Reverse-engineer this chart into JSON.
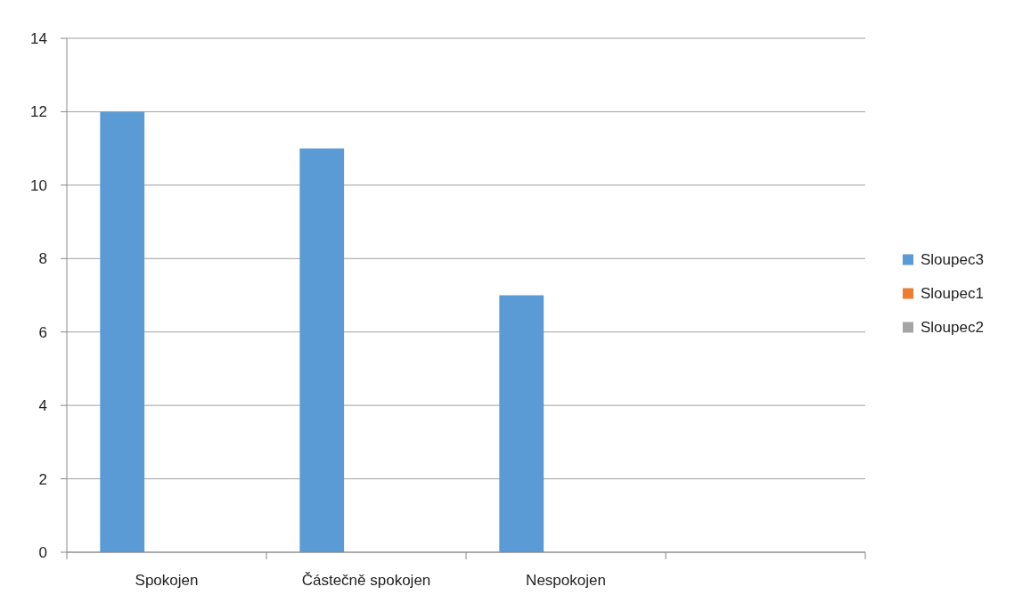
{
  "chart_data": {
    "type": "bar",
    "categories": [
      "Spokojen",
      "Částečně spokojen",
      "Nespokojen",
      null
    ],
    "series": [
      {
        "name": "Sloupec3",
        "color": "#5b9bd5",
        "values": [
          12,
          11,
          7,
          null
        ]
      },
      {
        "name": "Sloupec1",
        "color": "#ed7d31",
        "values": [
          null,
          null,
          null,
          null
        ]
      },
      {
        "name": "Sloupec2",
        "color": "#a5a5a5",
        "values": [
          null,
          null,
          null,
          null
        ]
      }
    ],
    "ylim": [
      0,
      14
    ],
    "yticks": [
      0,
      2,
      4,
      6,
      8,
      10,
      12,
      14
    ],
    "grid": "y",
    "legend": "right"
  }
}
